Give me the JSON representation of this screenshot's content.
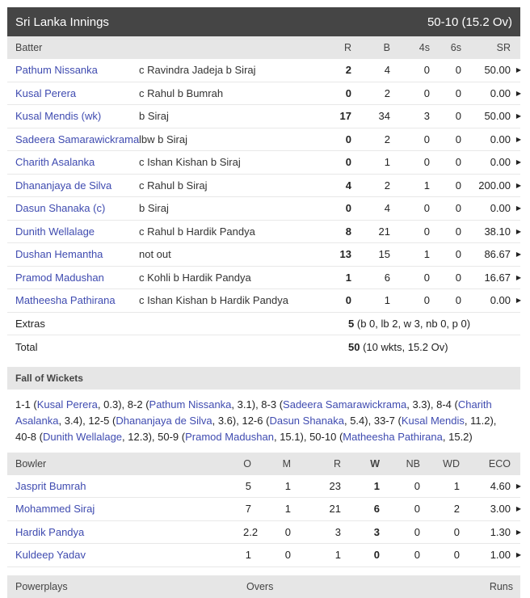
{
  "innings": {
    "title": "Sri Lanka Innings",
    "score": "50-10 (15.2 Ov)"
  },
  "batting_headers": {
    "batter": "Batter",
    "r": "R",
    "b": "B",
    "fours": "4s",
    "sixes": "6s",
    "sr": "SR"
  },
  "batters": [
    {
      "name": "Pathum Nissanka",
      "dismissal": "c Ravindra Jadeja b Siraj",
      "r": "2",
      "b": "4",
      "fours": "0",
      "sixes": "0",
      "sr": "50.00"
    },
    {
      "name": "Kusal Perera",
      "dismissal": "c Rahul b Bumrah",
      "r": "0",
      "b": "2",
      "fours": "0",
      "sixes": "0",
      "sr": "0.00"
    },
    {
      "name": "Kusal Mendis (wk)",
      "dismissal": "b Siraj",
      "r": "17",
      "b": "34",
      "fours": "3",
      "sixes": "0",
      "sr": "50.00"
    },
    {
      "name": "Sadeera Samarawickrama",
      "dismissal": "lbw b Siraj",
      "r": "0",
      "b": "2",
      "fours": "0",
      "sixes": "0",
      "sr": "0.00"
    },
    {
      "name": "Charith Asalanka",
      "dismissal": "c Ishan Kishan b Siraj",
      "r": "0",
      "b": "1",
      "fours": "0",
      "sixes": "0",
      "sr": "0.00"
    },
    {
      "name": "Dhananjaya de Silva",
      "dismissal": "c Rahul b Siraj",
      "r": "4",
      "b": "2",
      "fours": "1",
      "sixes": "0",
      "sr": "200.00"
    },
    {
      "name": "Dasun Shanaka (c)",
      "dismissal": "b Siraj",
      "r": "0",
      "b": "4",
      "fours": "0",
      "sixes": "0",
      "sr": "0.00"
    },
    {
      "name": "Dunith Wellalage",
      "dismissal": "c Rahul b Hardik Pandya",
      "r": "8",
      "b": "21",
      "fours": "0",
      "sixes": "0",
      "sr": "38.10"
    },
    {
      "name": "Dushan Hemantha",
      "dismissal": "not out",
      "r": "13",
      "b": "15",
      "fours": "1",
      "sixes": "0",
      "sr": "86.67"
    },
    {
      "name": "Pramod Madushan",
      "dismissal": "c Kohli b Hardik Pandya",
      "r": "1",
      "b": "6",
      "fours": "0",
      "sixes": "0",
      "sr": "16.67"
    },
    {
      "name": "Matheesha Pathirana",
      "dismissal": "c Ishan Kishan b Hardik Pandya",
      "r": "0",
      "b": "1",
      "fours": "0",
      "sixes": "0",
      "sr": "0.00"
    }
  ],
  "extras": {
    "label": "Extras",
    "total": "5",
    "detail": "(b 0, lb 2, w 3, nb 0, p 0)"
  },
  "total": {
    "label": "Total",
    "runs": "50",
    "detail": "(10 wkts, 15.2 Ov)"
  },
  "fall_of_wickets": {
    "title": "Fall of Wickets",
    "items": [
      {
        "score": "1-1",
        "batter": "Kusal Perera",
        "over": "0.3"
      },
      {
        "score": "8-2",
        "batter": "Pathum Nissanka",
        "over": "3.1"
      },
      {
        "score": "8-3",
        "batter": "Sadeera Samarawickrama",
        "over": "3.3"
      },
      {
        "score": "8-4",
        "batter": "Charith Asalanka",
        "over": "3.4"
      },
      {
        "score": "12-5",
        "batter": "Dhananjaya de Silva",
        "over": "3.6"
      },
      {
        "score": "12-6",
        "batter": "Dasun Shanaka",
        "over": "5.4"
      },
      {
        "score": "33-7",
        "batter": "Kusal Mendis",
        "over": "11.2"
      },
      {
        "score": "40-8",
        "batter": "Dunith Wellalage",
        "over": "12.3"
      },
      {
        "score": "50-9",
        "batter": "Pramod Madushan",
        "over": "15.1"
      },
      {
        "score": "50-10",
        "batter": "Matheesha Pathirana",
        "over": "15.2"
      }
    ]
  },
  "bowling_headers": {
    "bowler": "Bowler",
    "o": "O",
    "m": "M",
    "r": "R",
    "w": "W",
    "nb": "NB",
    "wd": "WD",
    "eco": "ECO"
  },
  "bowlers": [
    {
      "name": "Jasprit Bumrah",
      "o": "5",
      "m": "1",
      "r": "23",
      "w": "1",
      "nb": "0",
      "wd": "1",
      "eco": "4.60"
    },
    {
      "name": "Mohammed Siraj",
      "o": "7",
      "m": "1",
      "r": "21",
      "w": "6",
      "nb": "0",
      "wd": "2",
      "eco": "3.00"
    },
    {
      "name": "Hardik Pandya",
      "o": "2.2",
      "m": "0",
      "r": "3",
      "w": "3",
      "nb": "0",
      "wd": "0",
      "eco": "1.30"
    },
    {
      "name": "Kuldeep Yadav",
      "o": "1",
      "m": "0",
      "r": "1",
      "w": "0",
      "nb": "0",
      "wd": "0",
      "eco": "1.00"
    }
  ],
  "powerplays": {
    "label": "Powerplays",
    "overs": "Overs",
    "runs": "Runs"
  },
  "colors": {
    "header_bg": "#454545",
    "subheader_bg": "#e6e6e6",
    "link": "#3f4bb0"
  }
}
